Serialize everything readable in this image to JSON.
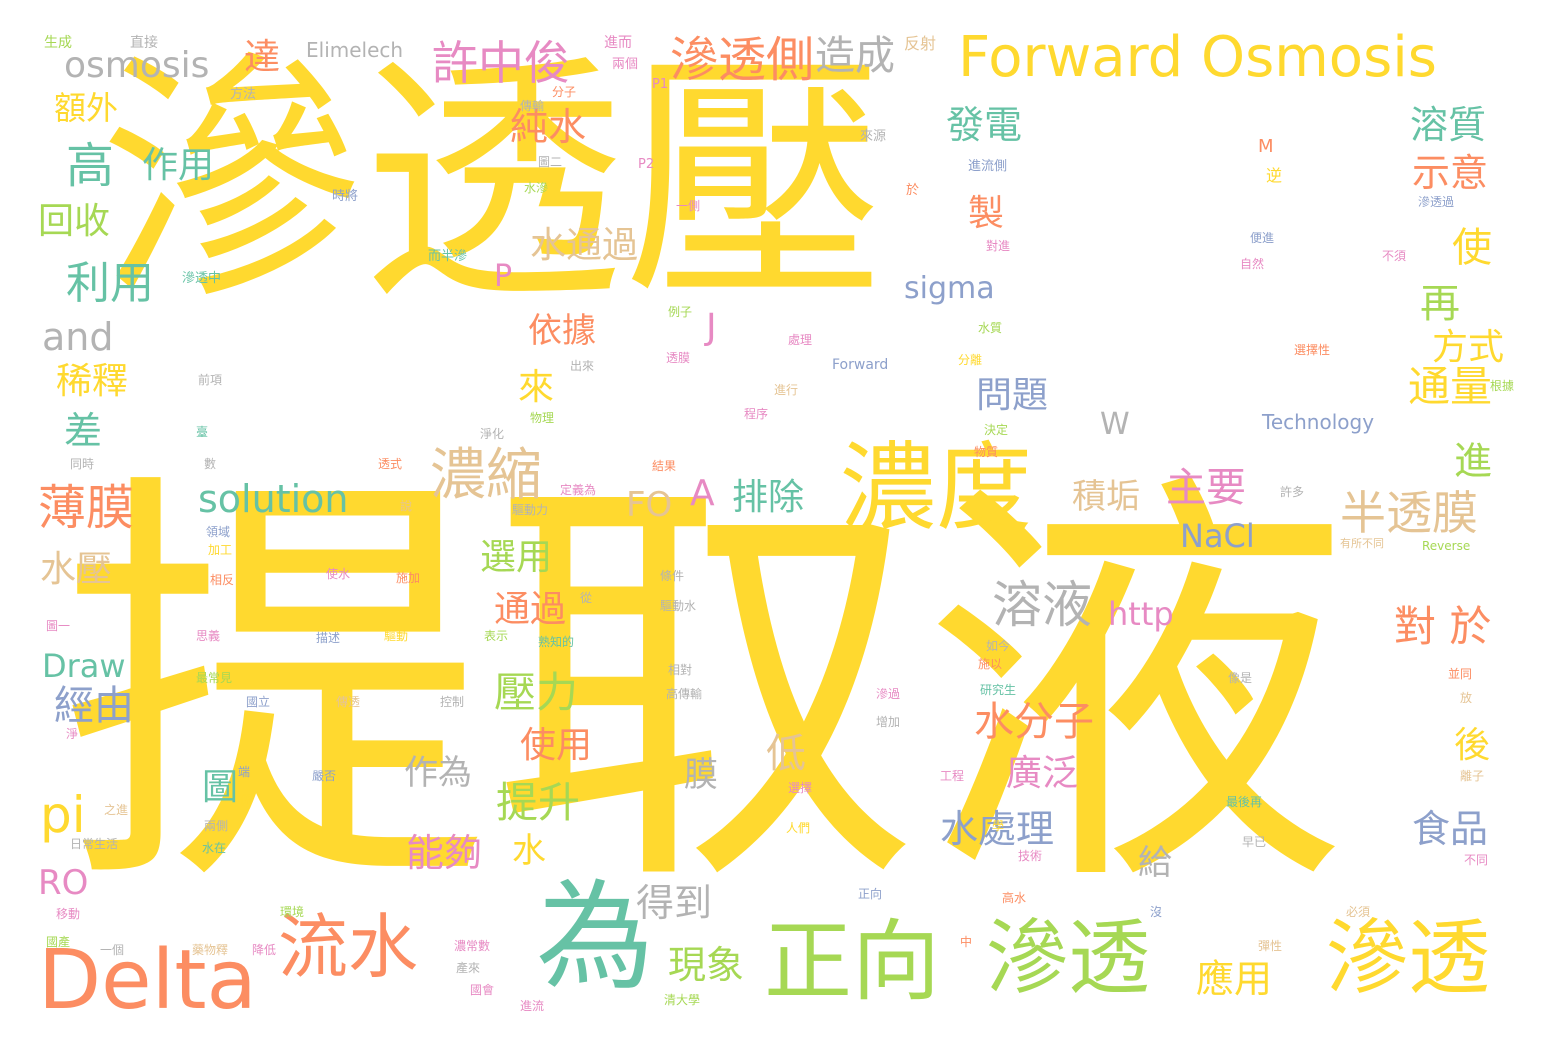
{
  "palette": {
    "yellow": "#ffd92f",
    "green": "#a6d854",
    "orange": "#fc8d62",
    "teal": "#66c2a5",
    "pink": "#e78ac3",
    "blue": "#8da0cb",
    "tan": "#e5c494",
    "gray": "#b3b3b3"
  },
  "words": [
    {
      "text": "滲透壓",
      "color": "yellow"
    },
    {
      "text": "提取液",
      "color": "yellow"
    },
    {
      "text": "Forward Osmosis",
      "color": "yellow"
    },
    {
      "text": "濃度",
      "color": "yellow"
    },
    {
      "text": "為",
      "color": "teal"
    },
    {
      "text": "正向",
      "color": "green"
    },
    {
      "text": "滲透",
      "color": "green"
    },
    {
      "text": "滲透",
      "color": "yellow"
    },
    {
      "text": "Delta",
      "color": "orange"
    },
    {
      "text": "流水",
      "color": "orange"
    },
    {
      "text": "濃縮",
      "color": "tan"
    },
    {
      "text": "溶液",
      "color": "gray"
    },
    {
      "text": "半透膜",
      "color": "tan"
    },
    {
      "text": "滲透側",
      "color": "orange"
    },
    {
      "text": "許中俊",
      "color": "pink"
    },
    {
      "text": "造成",
      "color": "gray"
    },
    {
      "text": "osmosis",
      "color": "gray"
    },
    {
      "text": "高",
      "color": "teal"
    },
    {
      "text": "solution",
      "color": "teal"
    },
    {
      "text": "薄膜",
      "color": "orange"
    },
    {
      "text": "pi",
      "color": "yellow"
    },
    {
      "text": "and",
      "color": "gray"
    },
    {
      "text": "利用",
      "color": "teal"
    },
    {
      "text": "回收",
      "color": "green"
    },
    {
      "text": "作用",
      "color": "teal"
    },
    {
      "text": "額外",
      "color": "yellow"
    },
    {
      "text": "達",
      "color": "orange"
    },
    {
      "text": "Elimelech",
      "color": "gray"
    },
    {
      "text": "純水",
      "color": "orange"
    },
    {
      "text": "發電",
      "color": "teal"
    },
    {
      "text": "溶質",
      "color": "teal"
    },
    {
      "text": "示意",
      "color": "orange"
    },
    {
      "text": "使",
      "color": "yellow"
    },
    {
      "text": "再",
      "color": "green"
    },
    {
      "text": "方式",
      "color": "yellow"
    },
    {
      "text": "通量",
      "color": "yellow"
    },
    {
      "text": "進",
      "color": "green"
    },
    {
      "text": "製",
      "color": "orange"
    },
    {
      "text": "水通過",
      "color": "tan"
    },
    {
      "text": "P",
      "color": "pink"
    },
    {
      "text": "J",
      "color": "pink"
    },
    {
      "text": "sigma",
      "color": "blue"
    },
    {
      "text": "依據",
      "color": "orange"
    },
    {
      "text": "來",
      "color": "yellow"
    },
    {
      "text": "問題",
      "color": "blue"
    },
    {
      "text": "W",
      "color": "gray"
    },
    {
      "text": "稀釋",
      "color": "yellow"
    },
    {
      "text": "差",
      "color": "teal"
    },
    {
      "text": "FO",
      "color": "tan"
    },
    {
      "text": "A",
      "color": "pink"
    },
    {
      "text": "排除",
      "color": "teal"
    },
    {
      "text": "積垢",
      "color": "tan"
    },
    {
      "text": "主要",
      "color": "pink"
    },
    {
      "text": "NaCl",
      "color": "blue"
    },
    {
      "text": "水壓",
      "color": "tan"
    },
    {
      "text": "選用",
      "color": "green"
    },
    {
      "text": "通過",
      "color": "orange"
    },
    {
      "text": "http",
      "color": "pink"
    },
    {
      "text": "對 於",
      "color": "orange"
    },
    {
      "text": "Draw",
      "color": "teal"
    },
    {
      "text": "壓力",
      "color": "green"
    },
    {
      "text": "經由",
      "color": "blue"
    },
    {
      "text": "水分子",
      "color": "orange"
    },
    {
      "text": "廣泛",
      "color": "pink"
    },
    {
      "text": "使用",
      "color": "orange"
    },
    {
      "text": "作為",
      "color": "gray"
    },
    {
      "text": "低",
      "color": "tan"
    },
    {
      "text": "膜",
      "color": "gray"
    },
    {
      "text": "後",
      "color": "yellow"
    },
    {
      "text": "提升",
      "color": "green"
    },
    {
      "text": "圖",
      "color": "teal"
    },
    {
      "text": "水處理",
      "color": "blue"
    },
    {
      "text": "食品",
      "color": "blue"
    },
    {
      "text": "能夠",
      "color": "pink"
    },
    {
      "text": "水",
      "color": "yellow"
    },
    {
      "text": "給",
      "color": "gray"
    },
    {
      "text": "RO",
      "color": "pink"
    },
    {
      "text": "得到",
      "color": "gray"
    },
    {
      "text": "現象",
      "color": "green"
    },
    {
      "text": "應用",
      "color": "yellow"
    },
    {
      "text": "生成",
      "color": "green"
    },
    {
      "text": "直接",
      "color": "gray"
    },
    {
      "text": "進而",
      "color": "pink"
    },
    {
      "text": "反射",
      "color": "tan"
    },
    {
      "text": "兩個",
      "color": "pink"
    },
    {
      "text": "方法",
      "color": "gray"
    },
    {
      "text": "分子",
      "color": "orange"
    },
    {
      "text": "P1",
      "color": "pink"
    },
    {
      "text": "傳輸",
      "color": "gray"
    },
    {
      "text": "來源",
      "color": "gray"
    },
    {
      "text": "圖二",
      "color": "gray"
    },
    {
      "text": "M",
      "color": "orange"
    },
    {
      "text": "P2",
      "color": "pink"
    },
    {
      "text": "進流側",
      "color": "blue"
    },
    {
      "text": "時將",
      "color": "blue"
    },
    {
      "text": "水滲",
      "color": "green"
    },
    {
      "text": "逆",
      "color": "yellow"
    },
    {
      "text": "於",
      "color": "orange"
    },
    {
      "text": "一側",
      "color": "pink"
    },
    {
      "text": "滲透過",
      "color": "blue"
    },
    {
      "text": "對進",
      "color": "pink"
    },
    {
      "text": "便進",
      "color": "blue"
    },
    {
      "text": "不須",
      "color": "pink"
    },
    {
      "text": "而半滲",
      "color": "teal"
    },
    {
      "text": "自然",
      "color": "pink"
    },
    {
      "text": "滲透中",
      "color": "teal"
    },
    {
      "text": "例子",
      "color": "green"
    },
    {
      "text": "水質",
      "color": "green"
    },
    {
      "text": "處理",
      "color": "pink"
    },
    {
      "text": "選擇性",
      "color": "orange"
    },
    {
      "text": "透膜",
      "color": "pink"
    },
    {
      "text": "Forward",
      "color": "blue"
    },
    {
      "text": "分離",
      "color": "yellow"
    },
    {
      "text": "前項",
      "color": "gray"
    },
    {
      "text": "出來",
      "color": "gray"
    },
    {
      "text": "進行",
      "color": "tan"
    },
    {
      "text": "物理",
      "color": "green"
    },
    {
      "text": "程序",
      "color": "pink"
    },
    {
      "text": "Technology",
      "color": "blue"
    },
    {
      "text": "根據",
      "color": "green"
    },
    {
      "text": "臺",
      "color": "teal"
    },
    {
      "text": "淨化",
      "color": "gray"
    },
    {
      "text": "決定",
      "color": "green"
    },
    {
      "text": "同時",
      "color": "gray"
    },
    {
      "text": "數",
      "color": "gray"
    },
    {
      "text": "透式",
      "color": "orange"
    },
    {
      "text": "結果",
      "color": "orange"
    },
    {
      "text": "物質",
      "color": "orange"
    },
    {
      "text": "定義為",
      "color": "pink"
    },
    {
      "text": "驅動力",
      "color": "gray"
    },
    {
      "text": "許多",
      "color": "gray"
    },
    {
      "text": "說",
      "color": "tan"
    },
    {
      "text": "領域",
      "color": "blue"
    },
    {
      "text": "有所不同",
      "color": "tan"
    },
    {
      "text": "Reverse",
      "color": "green"
    },
    {
      "text": "加工",
      "color": "yellow"
    },
    {
      "text": "條件",
      "color": "gray"
    },
    {
      "text": "使水",
      "color": "pink"
    },
    {
      "text": "施加",
      "color": "orange"
    },
    {
      "text": "相反",
      "color": "orange"
    },
    {
      "text": "驅動水",
      "color": "gray"
    },
    {
      "text": "從",
      "color": "gray"
    },
    {
      "text": "圖一",
      "color": "pink"
    },
    {
      "text": "思義",
      "color": "pink"
    },
    {
      "text": "描述",
      "color": "blue"
    },
    {
      "text": "驅動",
      "color": "yellow"
    },
    {
      "text": "表示",
      "color": "green"
    },
    {
      "text": "熟知的",
      "color": "teal"
    },
    {
      "text": "如今",
      "color": "gray"
    },
    {
      "text": "並同",
      "color": "orange"
    },
    {
      "text": "最常見",
      "color": "green"
    },
    {
      "text": "相對",
      "color": "gray"
    },
    {
      "text": "施以",
      "color": "orange"
    },
    {
      "text": "像是",
      "color": "gray"
    },
    {
      "text": "國立",
      "color": "blue"
    },
    {
      "text": "傳透",
      "color": "tan"
    },
    {
      "text": "控制",
      "color": "gray"
    },
    {
      "text": "高傳輸",
      "color": "gray"
    },
    {
      "text": "研究生",
      "color": "teal"
    },
    {
      "text": "放",
      "color": "tan"
    },
    {
      "text": "淨",
      "color": "pink"
    },
    {
      "text": "滲過",
      "color": "pink"
    },
    {
      "text": "增加",
      "color": "gray"
    },
    {
      "text": "端",
      "color": "blue"
    },
    {
      "text": "嚴否",
      "color": "blue"
    },
    {
      "text": "工程",
      "color": "pink"
    },
    {
      "text": "離子",
      "color": "tan"
    },
    {
      "text": "之進",
      "color": "tan"
    },
    {
      "text": "選擇",
      "color": "pink"
    },
    {
      "text": "係",
      "color": "yellow"
    },
    {
      "text": "最後再",
      "color": "teal"
    },
    {
      "text": "兩側",
      "color": "gray"
    },
    {
      "text": "水在",
      "color": "teal"
    },
    {
      "text": "人們",
      "color": "yellow"
    },
    {
      "text": "學",
      "color": "yellow"
    },
    {
      "text": "技術",
      "color": "pink"
    },
    {
      "text": "早已",
      "color": "gray"
    },
    {
      "text": "日常生活",
      "color": "gray"
    },
    {
      "text": "不同",
      "color": "pink"
    },
    {
      "text": "正向",
      "color": "blue"
    },
    {
      "text": "高水",
      "color": "orange"
    },
    {
      "text": "移動",
      "color": "pink"
    },
    {
      "text": "環境",
      "color": "green"
    },
    {
      "text": "沒",
      "color": "blue"
    },
    {
      "text": "必須",
      "color": "tan"
    },
    {
      "text": "國產",
      "color": "green"
    },
    {
      "text": "一個",
      "color": "gray"
    },
    {
      "text": "藥物釋",
      "color": "tan"
    },
    {
      "text": "降低",
      "color": "pink"
    },
    {
      "text": "濃常數",
      "color": "pink"
    },
    {
      "text": "產來",
      "color": "gray"
    },
    {
      "text": "中",
      "color": "orange"
    },
    {
      "text": "彈性",
      "color": "tan"
    },
    {
      "text": "國會",
      "color": "pink"
    },
    {
      "text": "清大學",
      "color": "green"
    },
    {
      "text": "進流",
      "color": "pink"
    }
  ]
}
